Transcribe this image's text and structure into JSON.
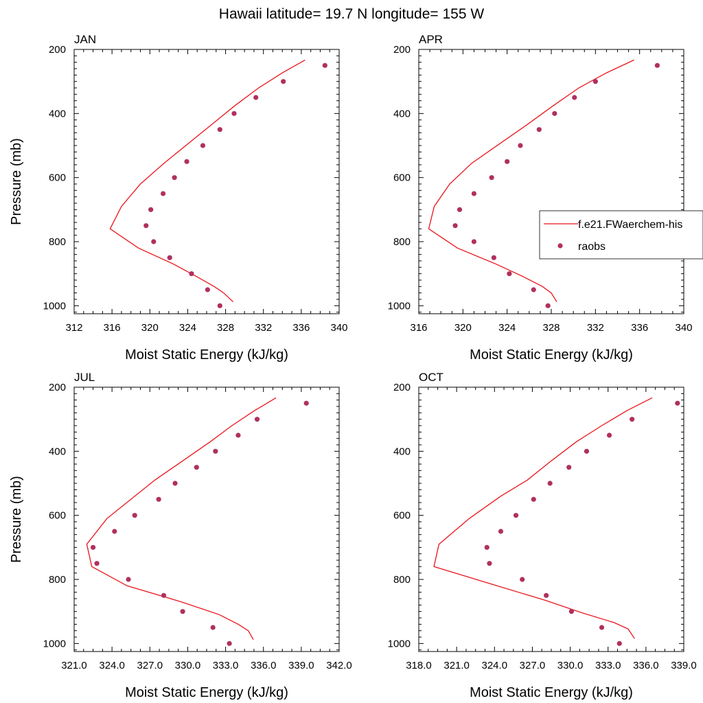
{
  "title": "Hawaii  latitude= 19.7 N longitude= 155 W",
  "colors": {
    "model": "#e8141b",
    "raobs": "#b03060",
    "axis": "#000000"
  },
  "legend": {
    "model_label": "f.e21.FWaerchem-his",
    "raobs_label": "raobs"
  },
  "chart_data": [
    {
      "type": "line",
      "panel": "JAN",
      "title": "JAN",
      "xlabel": "Moist Static Energy (kJ/kg)",
      "ylabel": "Pressure (mb)",
      "xlim": [
        312,
        340
      ],
      "ylim": [
        1025,
        200
      ],
      "xticks": [
        312,
        316,
        320,
        324,
        328,
        332,
        336,
        340
      ],
      "xtick_labels": [
        "312",
        "316",
        "320",
        "324",
        "328",
        "332",
        "336",
        "340"
      ],
      "yticks": [
        200,
        400,
        600,
        800,
        1000
      ],
      "ytick_labels": [
        "200",
        "400",
        "600",
        "800",
        "1000"
      ],
      "series": [
        {
          "name": "f.e21.FWaerchem-his",
          "kind": "line",
          "x": [
            336.4,
            334.0,
            331.5,
            329.0,
            326.5,
            324.0,
            321.5,
            319.0,
            317.0,
            315.8,
            318.8,
            322.5,
            325.0,
            326.8,
            327.8,
            328.8
          ],
          "y": [
            233,
            273,
            320,
            375,
            435,
            495,
            555,
            620,
            690,
            760,
            820,
            870,
            910,
            940,
            960,
            988
          ]
        },
        {
          "name": "raobs",
          "kind": "scatter",
          "x": [
            338.5,
            334.1,
            331.2,
            328.9,
            327.4,
            325.6,
            323.9,
            322.6,
            321.4,
            320.1,
            319.6,
            320.4,
            322.1,
            324.4,
            326.1,
            327.4
          ],
          "y": [
            250,
            300,
            350,
            400,
            450,
            500,
            550,
            600,
            650,
            700,
            750,
            800,
            850,
            900,
            950,
            1000
          ]
        }
      ]
    },
    {
      "type": "line",
      "panel": "APR",
      "title": "APR",
      "xlabel": "Moist Static Energy (kJ/kg)",
      "ylabel": "",
      "xlim": [
        316,
        340
      ],
      "ylim": [
        1025,
        200
      ],
      "xticks": [
        316,
        320,
        324,
        328,
        332,
        336,
        340
      ],
      "xtick_labels": [
        "316",
        "320",
        "324",
        "328",
        "332",
        "336",
        "340"
      ],
      "yticks": [
        200,
        400,
        600,
        800,
        1000
      ],
      "ytick_labels": [
        "200",
        "400",
        "600",
        "800",
        "1000"
      ],
      "show_legend": true,
      "series": [
        {
          "name": "f.e21.FWaerchem-his",
          "kind": "line",
          "x": [
            335.5,
            333.0,
            330.5,
            328.2,
            325.8,
            323.3,
            320.8,
            318.8,
            317.4,
            316.9,
            319.5,
            323.0,
            325.5,
            327.2,
            328.0,
            328.5
          ],
          "y": [
            233,
            273,
            320,
            375,
            435,
            495,
            555,
            620,
            690,
            760,
            820,
            870,
            910,
            940,
            960,
            988
          ]
        },
        {
          "name": "raobs",
          "kind": "scatter",
          "x": [
            337.6,
            332.0,
            330.1,
            328.3,
            326.9,
            325.2,
            324.0,
            322.6,
            321.0,
            319.7,
            319.3,
            321.0,
            322.8,
            324.2,
            326.4,
            327.7
          ],
          "y": [
            250,
            300,
            350,
            400,
            450,
            500,
            550,
            600,
            650,
            700,
            750,
            800,
            850,
            900,
            950,
            1000
          ]
        }
      ]
    },
    {
      "type": "line",
      "panel": "JUL",
      "title": "JUL",
      "xlabel": "Moist Static Energy (kJ/kg)",
      "ylabel": "Pressure (mb)",
      "xlim": [
        321.0,
        342.0
      ],
      "ylim": [
        1025,
        200
      ],
      "xticks": [
        321,
        324,
        327,
        330,
        333,
        336,
        339,
        342
      ],
      "xtick_labels": [
        "321.0",
        "324.0",
        "327.0",
        "330.0",
        "333.0",
        "336.0",
        "339.0",
        "342.0"
      ],
      "yticks": [
        200,
        400,
        600,
        800,
        1000
      ],
      "ytick_labels": [
        "200",
        "400",
        "600",
        "800",
        "1000"
      ],
      "series": [
        {
          "name": "f.e21.FWaerchem-his",
          "kind": "line",
          "x": [
            337.0,
            335.3,
            333.5,
            331.8,
            329.6,
            327.4,
            325.5,
            323.6,
            322.0,
            322.4,
            325.2,
            329.5,
            332.5,
            334.0,
            334.8,
            335.2
          ],
          "y": [
            233,
            273,
            320,
            370,
            430,
            490,
            550,
            610,
            690,
            760,
            820,
            870,
            910,
            940,
            960,
            988
          ]
        },
        {
          "name": "raobs",
          "kind": "scatter",
          "x": [
            339.4,
            335.5,
            334.0,
            332.2,
            330.7,
            329.0,
            327.7,
            325.8,
            324.2,
            322.5,
            322.8,
            325.3,
            328.1,
            329.6,
            332.0,
            333.3
          ],
          "y": [
            250,
            300,
            350,
            400,
            450,
            500,
            550,
            600,
            650,
            700,
            750,
            800,
            850,
            900,
            950,
            1000
          ]
        }
      ]
    },
    {
      "type": "line",
      "panel": "OCT",
      "title": "OCT",
      "xlabel": "Moist Static Energy (kJ/kg)",
      "ylabel": "",
      "xlim": [
        318.0,
        339.0
      ],
      "ylim": [
        1025,
        200
      ],
      "xticks": [
        318,
        321,
        324,
        327,
        330,
        333,
        336,
        339
      ],
      "xtick_labels": [
        "318.0",
        "321.0",
        "324.0",
        "327.0",
        "330.0",
        "333.0",
        "336.0",
        "339.0"
      ],
      "yticks": [
        200,
        400,
        600,
        800,
        1000
      ],
      "ytick_labels": [
        "200",
        "400",
        "600",
        "800",
        "1000"
      ],
      "series": [
        {
          "name": "f.e21.FWaerchem-his",
          "kind": "line",
          "x": [
            336.5,
            334.5,
            332.5,
            330.5,
            328.5,
            326.6,
            324.5,
            322.0,
            319.6,
            319.2,
            323.8,
            328.0,
            331.0,
            333.5,
            334.6,
            335.1
          ],
          "y": [
            233,
            273,
            320,
            370,
            430,
            490,
            540,
            610,
            690,
            760,
            815,
            865,
            905,
            935,
            955,
            985
          ]
        },
        {
          "name": "raobs",
          "kind": "scatter",
          "x": [
            338.5,
            334.9,
            333.1,
            331.3,
            329.9,
            328.4,
            327.1,
            325.7,
            324.5,
            323.4,
            323.6,
            326.2,
            328.1,
            330.1,
            332.5,
            333.9
          ],
          "y": [
            250,
            300,
            350,
            400,
            450,
            500,
            550,
            600,
            650,
            700,
            750,
            800,
            850,
            900,
            950,
            1000
          ]
        }
      ]
    }
  ]
}
